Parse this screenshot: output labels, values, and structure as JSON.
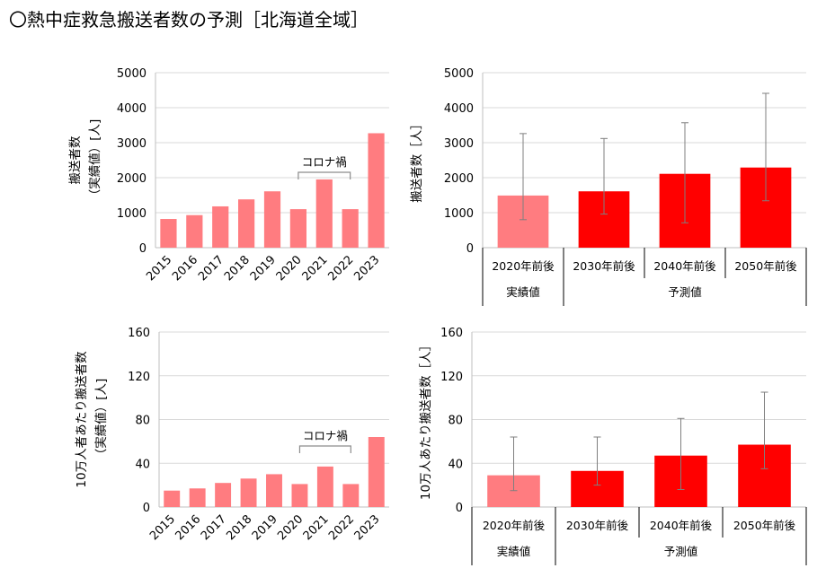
{
  "page_title": "〇熱中症救急搬送者数の予測［北海道全域］",
  "chart_data": [
    {
      "type": "bar",
      "categories": [
        "2015",
        "2016",
        "2017",
        "2018",
        "2019",
        "2020",
        "2021",
        "2022",
        "2023"
      ],
      "values": [
        820,
        930,
        1180,
        1380,
        1610,
        1100,
        1950,
        1100,
        3270
      ],
      "ylim": [
        0,
        5000
      ],
      "yticks": [
        0,
        1000,
        2000,
        3000,
        4000,
        5000
      ],
      "ylabel_lines": [
        "搬送者数",
        "（実績値）[人]"
      ],
      "annotation": "コロナ禍",
      "annotation_span": [
        "2020",
        "2022"
      ],
      "color": "#ff7c80"
    },
    {
      "type": "bar",
      "categories": [
        "2020年前後",
        "2030年前後",
        "2040年前後",
        "2050年前後"
      ],
      "values": [
        1490,
        1610,
        2110,
        2290
      ],
      "error_high": [
        3260,
        3120,
        3570,
        4410
      ],
      "error_low": [
        800,
        960,
        710,
        1340
      ],
      "colors": [
        "#ff7c80",
        "#ff0000",
        "#ff0000",
        "#ff0000"
      ],
      "ylim": [
        0,
        5000
      ],
      "yticks": [
        0,
        1000,
        2000,
        3000,
        4000,
        5000
      ],
      "ylabel_lines": [
        "搬送者数［人］"
      ],
      "group_labels": [
        "実績値",
        "予測値"
      ]
    },
    {
      "type": "bar",
      "categories": [
        "2015",
        "2016",
        "2017",
        "2018",
        "2019",
        "2020",
        "2021",
        "2022",
        "2023"
      ],
      "values": [
        15,
        17,
        22,
        26,
        30,
        21,
        37,
        21,
        64
      ],
      "ylim": [
        0,
        160
      ],
      "yticks": [
        0,
        40,
        80,
        120,
        160
      ],
      "ylabel_lines": [
        "10万人者あたり搬送者数",
        "（実績値）[人]"
      ],
      "annotation": "コロナ禍",
      "annotation_span": [
        "2020",
        "2022"
      ],
      "color": "#ff7c80"
    },
    {
      "type": "bar",
      "categories": [
        "2020年前後",
        "2030年前後",
        "2040年前後",
        "2050年前後"
      ],
      "values": [
        29,
        33,
        47,
        57
      ],
      "error_high": [
        64,
        64,
        81,
        105
      ],
      "error_low": [
        15,
        20,
        16,
        35
      ],
      "colors": [
        "#ff7c80",
        "#ff0000",
        "#ff0000",
        "#ff0000"
      ],
      "ylim": [
        0,
        160
      ],
      "yticks": [
        0,
        40,
        80,
        120,
        160
      ],
      "ylabel_lines": [
        "10万人あたり搬送者数［人］"
      ],
      "group_labels": [
        "実績値",
        "予測値"
      ]
    }
  ]
}
